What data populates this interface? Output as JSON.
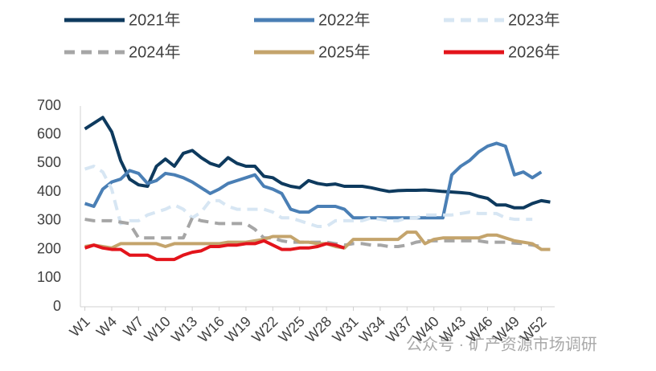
{
  "chart_data": {
    "type": "line",
    "watermark": "公众号 · 矿产资源市场调研",
    "categories": [
      "W1",
      null,
      null,
      "W4",
      null,
      null,
      "W7",
      null,
      null,
      "W10",
      null,
      null,
      "W13",
      null,
      null,
      "W16",
      null,
      null,
      "W19",
      null,
      null,
      "W22",
      null,
      null,
      "W25",
      null,
      null,
      "W28",
      null,
      null,
      "W31",
      null,
      null,
      "W34",
      null,
      null,
      "W37",
      null,
      null,
      "W40",
      null,
      null,
      "W43",
      null,
      null,
      "W46",
      null,
      null,
      "W49",
      null,
      null,
      "W52",
      null
    ],
    "ylim": [
      0,
      700
    ],
    "yticks": [
      0,
      100,
      200,
      300,
      400,
      500,
      600,
      700
    ],
    "series": [
      {
        "name": "2021年",
        "color": "#0e3a5e",
        "dash": "solid",
        "values": [
          620,
          640,
          660,
          610,
          510,
          445,
          425,
          420,
          490,
          515,
          490,
          535,
          545,
          520,
          500,
          490,
          520,
          500,
          490,
          490,
          455,
          450,
          430,
          420,
          415,
          440,
          430,
          425,
          428,
          420,
          420,
          420,
          415,
          408,
          402,
          405,
          406,
          406,
          407,
          405,
          402,
          400,
          398,
          395,
          385,
          378,
          355,
          355,
          345,
          345,
          360,
          370,
          365
        ]
      },
      {
        "name": "2022年",
        "color": "#4a7fb5",
        "dash": "solid",
        "values": [
          360,
          350,
          410,
          435,
          445,
          475,
          465,
          430,
          440,
          465,
          460,
          450,
          435,
          415,
          395,
          410,
          430,
          440,
          450,
          460,
          420,
          410,
          395,
          340,
          330,
          330,
          350,
          350,
          350,
          340,
          310,
          310,
          310,
          310,
          310,
          310,
          310,
          310,
          310,
          310,
          310,
          460,
          490,
          510,
          540,
          560,
          570,
          560,
          460,
          470,
          450,
          470,
          null
        ]
      },
      {
        "name": "2023年",
        "color": "#d7e6f3",
        "dash": "dashed",
        "values": [
          480,
          490,
          470,
          410,
          290,
          300,
          300,
          320,
          330,
          340,
          355,
          340,
          310,
          330,
          370,
          370,
          350,
          340,
          340,
          340,
          340,
          330,
          310,
          310,
          300,
          290,
          280,
          280,
          300,
          300,
          300,
          300,
          310,
          305,
          300,
          300,
          310,
          310,
          320,
          320,
          320,
          320,
          325,
          330,
          325,
          325,
          325,
          310,
          305,
          305,
          305,
          null,
          null
        ]
      },
      {
        "name": "2024年",
        "color": "#a6a6a6",
        "dash": "dashed",
        "values": [
          305,
          300,
          300,
          300,
          295,
          290,
          240,
          240,
          240,
          240,
          240,
          240,
          310,
          300,
          295,
          290,
          290,
          290,
          290,
          270,
          240,
          240,
          230,
          225,
          225,
          225,
          225,
          225,
          220,
          215,
          220,
          220,
          215,
          215,
          210,
          210,
          215,
          225,
          230,
          230,
          230,
          230,
          230,
          230,
          230,
          225,
          225,
          225,
          222,
          220,
          215,
          210,
          null
        ]
      },
      {
        "name": "2025年",
        "color": "#c4a46c",
        "dash": "solid",
        "values": [
          210,
          215,
          210,
          205,
          220,
          220,
          220,
          220,
          220,
          210,
          220,
          220,
          220,
          220,
          220,
          220,
          225,
          225,
          225,
          230,
          235,
          245,
          245,
          245,
          225,
          225,
          220,
          220,
          210,
          205,
          235,
          235,
          235,
          235,
          235,
          235,
          260,
          260,
          220,
          235,
          240,
          240,
          240,
          240,
          240,
          250,
          250,
          240,
          230,
          225,
          220,
          200,
          200
        ]
      },
      {
        "name": "2026年",
        "color": "#e3141b",
        "dash": "solid",
        "values": [
          205,
          215,
          205,
          200,
          200,
          180,
          180,
          180,
          165,
          165,
          165,
          180,
          190,
          195,
          210,
          210,
          215,
          215,
          220,
          220,
          230,
          215,
          200,
          200,
          205,
          205,
          210,
          220,
          215,
          205,
          null,
          null,
          null,
          null,
          null,
          null,
          null,
          null,
          null,
          null,
          null,
          null,
          null,
          null,
          null,
          null,
          null,
          null,
          null,
          null,
          null,
          null,
          null
        ]
      }
    ]
  }
}
